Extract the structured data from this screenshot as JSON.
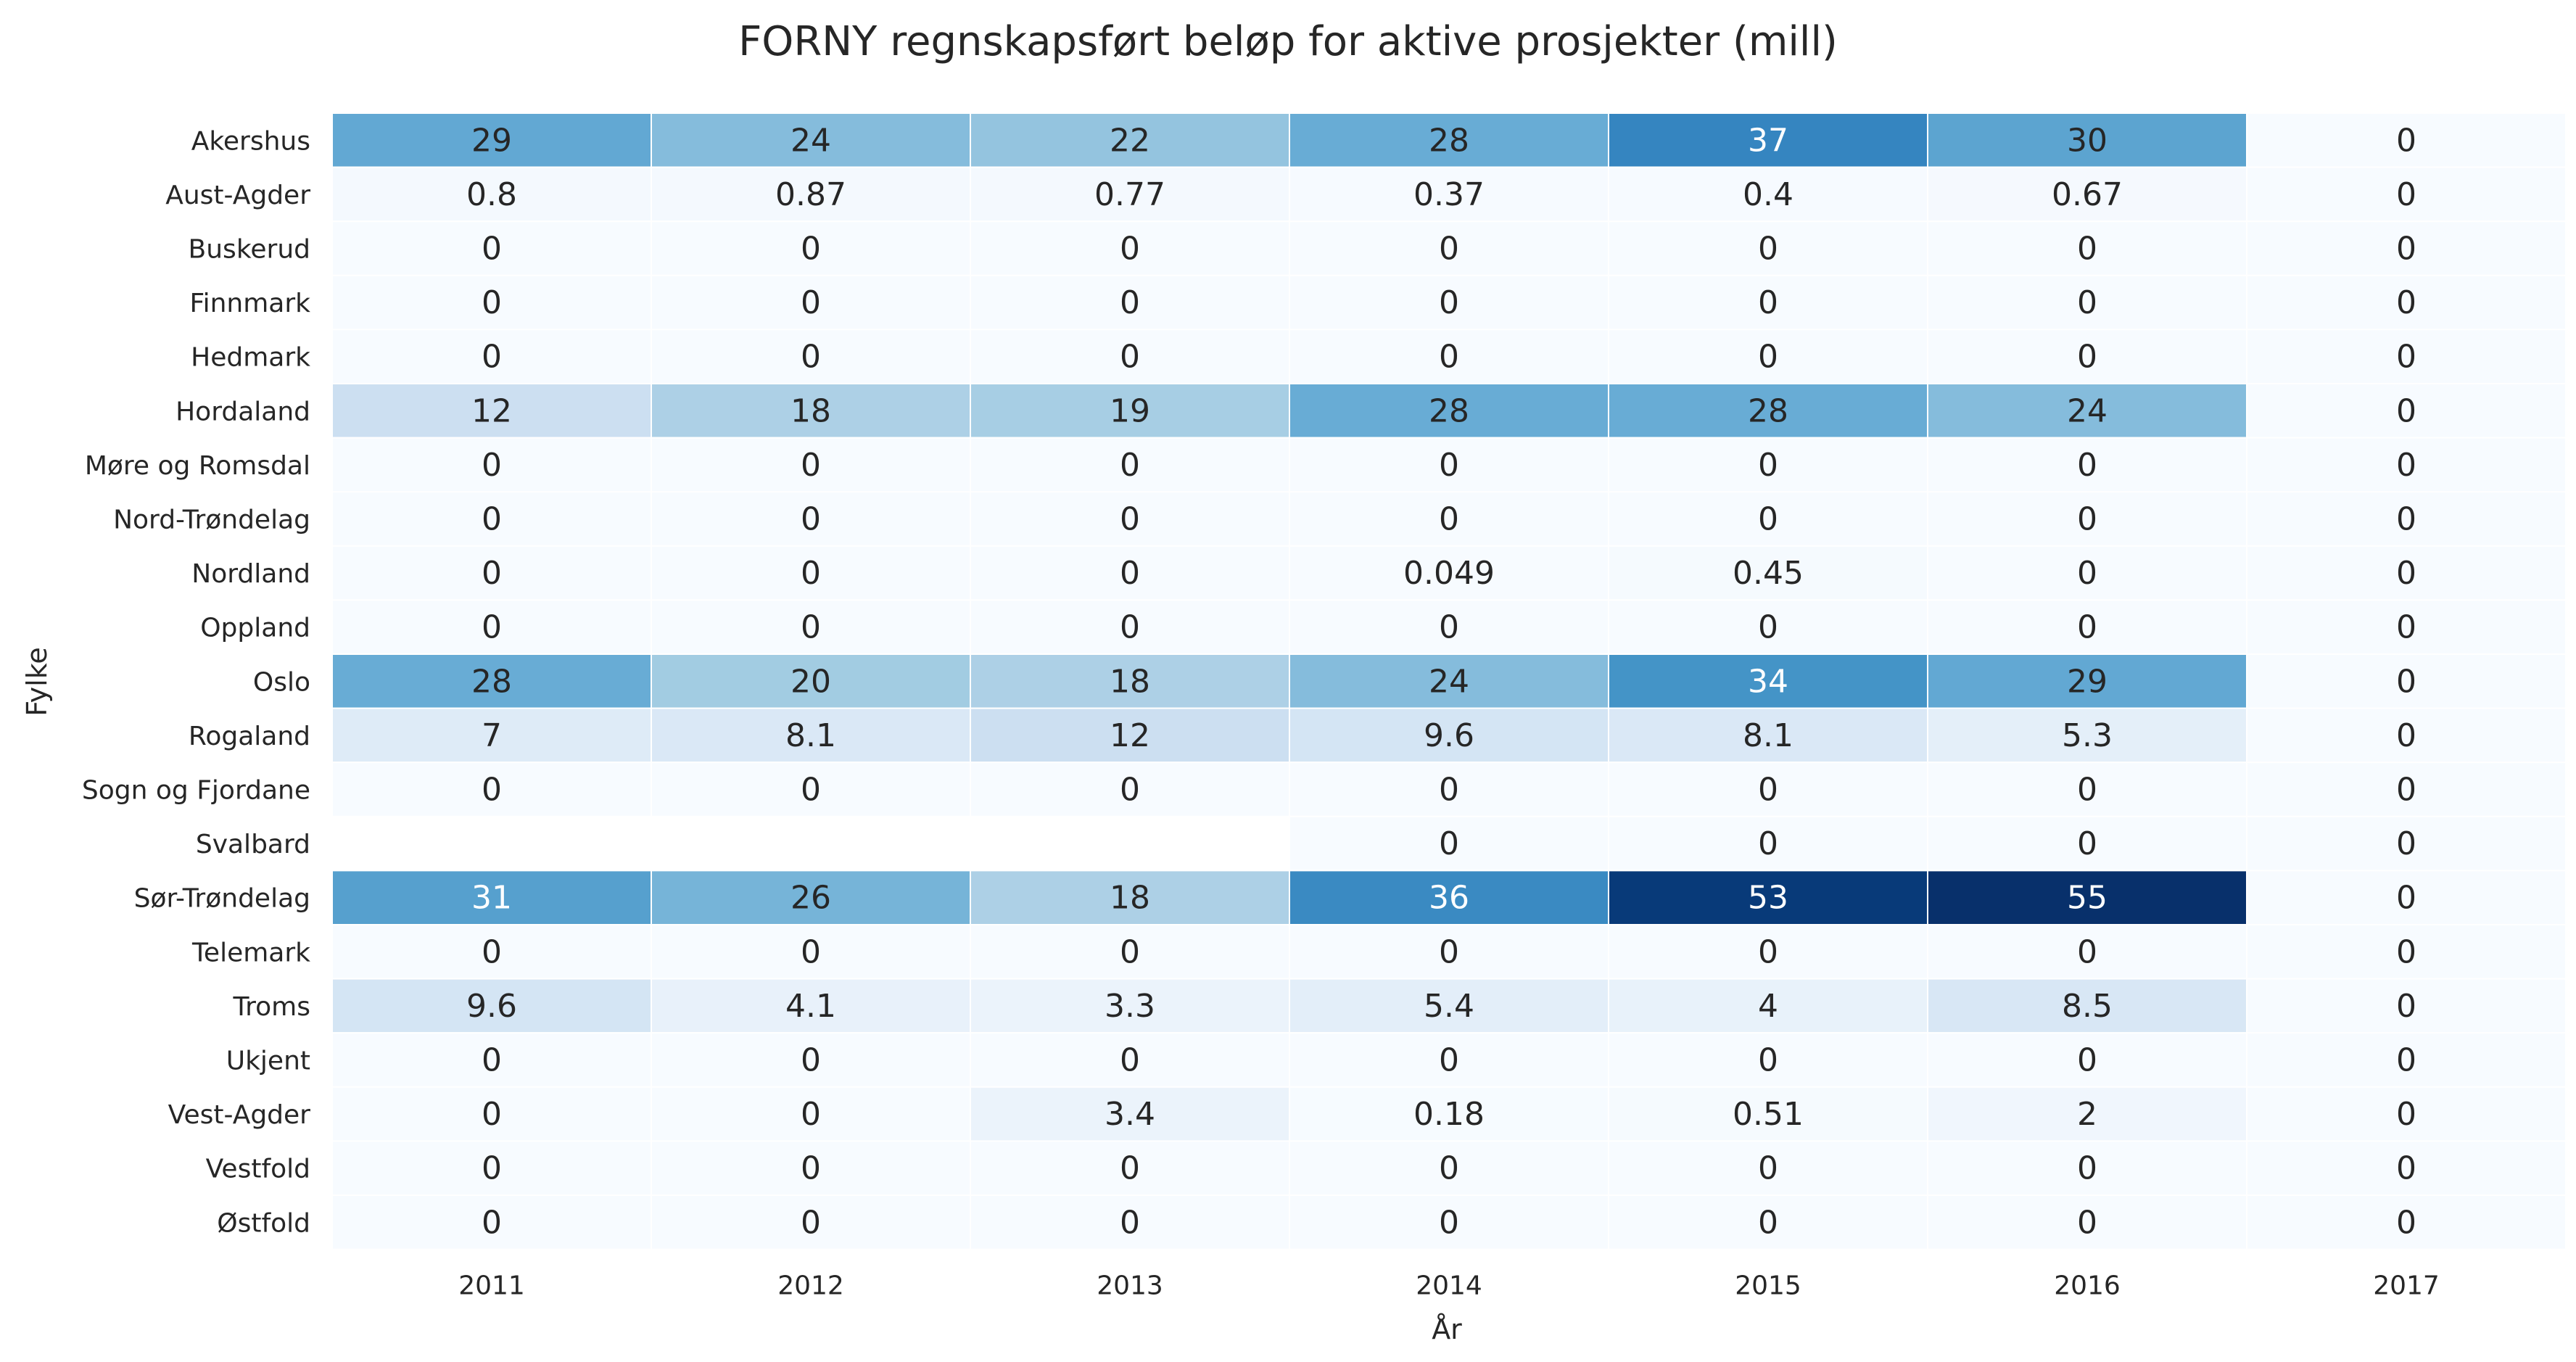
{
  "chart_data": {
    "type": "heatmap",
    "title": "FORNY regnskapsført beløp for aktive prosjekter (mill)",
    "xlabel": "År",
    "ylabel": "Fylke",
    "colormap": "Blues",
    "value_range": [
      0,
      55
    ],
    "grid": false,
    "legend": "none",
    "x": [
      "2011",
      "2012",
      "2013",
      "2014",
      "2015",
      "2016",
      "2017"
    ],
    "y": [
      "Akershus",
      "Aust-Agder",
      "Buskerud",
      "Finnmark",
      "Hedmark",
      "Hordaland",
      "Møre og Romsdal",
      "Nord-Trøndelag",
      "Nordland",
      "Oppland",
      "Oslo",
      "Rogaland",
      "Sogn og Fjordane",
      "Svalbard",
      "Sør-Trøndelag",
      "Telemark",
      "Troms",
      "Ukjent",
      "Vest-Agder",
      "Vestfold",
      "Østfold"
    ],
    "values": [
      [
        29,
        24,
        22,
        28,
        37,
        30,
        0
      ],
      [
        0.8,
        0.87,
        0.77,
        0.37,
        0.4,
        0.67,
        0
      ],
      [
        0,
        0,
        0,
        0,
        0,
        0,
        0
      ],
      [
        0,
        0,
        0,
        0,
        0,
        0,
        0
      ],
      [
        0,
        0,
        0,
        0,
        0,
        0,
        0
      ],
      [
        12,
        18,
        19,
        28,
        28,
        24,
        0
      ],
      [
        0,
        0,
        0,
        0,
        0,
        0,
        0
      ],
      [
        0,
        0,
        0,
        0,
        0,
        0,
        0
      ],
      [
        0,
        0,
        0,
        0.049,
        0.45,
        0,
        0
      ],
      [
        0,
        0,
        0,
        0,
        0,
        0,
        0
      ],
      [
        28,
        20,
        18,
        24,
        34,
        29,
        0
      ],
      [
        7,
        8.1,
        12,
        9.6,
        8.1,
        5.3,
        0
      ],
      [
        0,
        0,
        0,
        0,
        0,
        0,
        0
      ],
      [
        null,
        null,
        null,
        0,
        0,
        0,
        0
      ],
      [
        31,
        26,
        18,
        36,
        53,
        55,
        0
      ],
      [
        0,
        0,
        0,
        0,
        0,
        0,
        0
      ],
      [
        9.6,
        4.1,
        3.3,
        5.4,
        4,
        8.5,
        0
      ],
      [
        0,
        0,
        0,
        0,
        0,
        0,
        0
      ],
      [
        0,
        0,
        3.4,
        0.18,
        0.51,
        2,
        0
      ],
      [
        0,
        0,
        0,
        0,
        0,
        0,
        0
      ],
      [
        0,
        0,
        0,
        0,
        0,
        0,
        0
      ]
    ]
  }
}
